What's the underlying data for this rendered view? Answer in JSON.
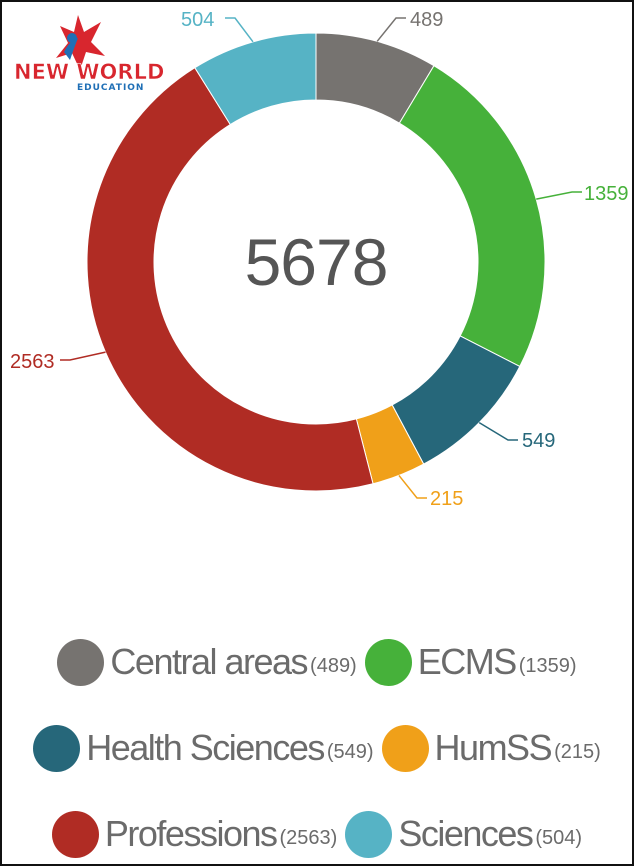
{
  "logo": {
    "line1": "NEW WORLD",
    "line2": "EDUCATION"
  },
  "chart_data": {
    "type": "pie",
    "style": "donut",
    "total": "5678",
    "slices": [
      {
        "name": "Central areas",
        "value": 489,
        "label": "489",
        "count_text": "(489)",
        "color": "#767370"
      },
      {
        "name": "ECMS",
        "value": 1359,
        "label": "1359",
        "count_text": "(1359)",
        "color": "#46b13a"
      },
      {
        "name": "Health Sciences",
        "value": 549,
        "label": "549",
        "count_text": "(549)",
        "color": "#26677a"
      },
      {
        "name": "HumSS",
        "value": 215,
        "label": "215",
        "count_text": "(215)",
        "color": "#f0a019"
      },
      {
        "name": "Professions",
        "value": 2563,
        "label": "2563",
        "count_text": "(2563)",
        "color": "#b02c24"
      },
      {
        "name": "Sciences",
        "value": 504,
        "label": "504",
        "count_text": "(504)",
        "color": "#56b3c5"
      }
    ],
    "legend_placement": "bottom"
  }
}
